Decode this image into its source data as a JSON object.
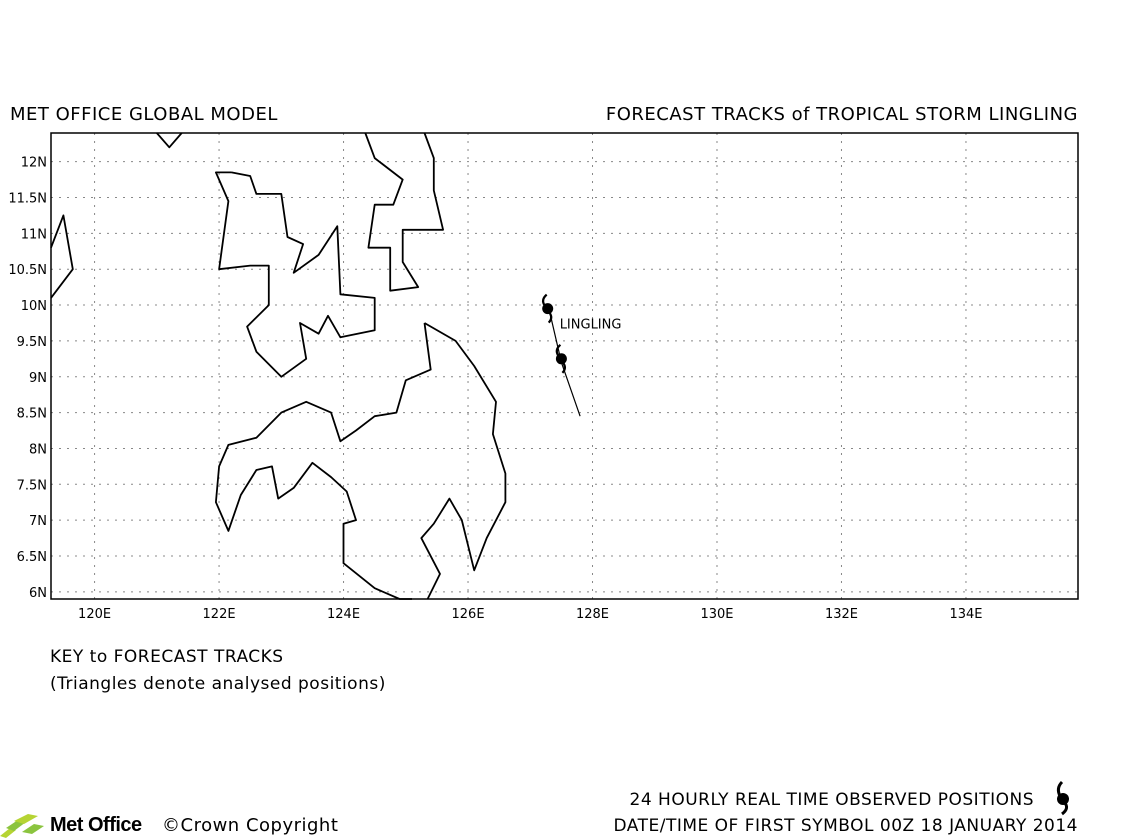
{
  "header": {
    "left_title": "MET OFFICE GLOBAL MODEL",
    "right_title": "FORECAST TRACKS of TROPICAL STORM LINGLING"
  },
  "map": {
    "lon_range": [
      119.3,
      135.8
    ],
    "lat_range": [
      5.9,
      12.4
    ],
    "grid": true,
    "lon_ticks": [
      {
        "value": 120,
        "label": "120E"
      },
      {
        "value": 122,
        "label": "122E"
      },
      {
        "value": 124,
        "label": "124E"
      },
      {
        "value": 126,
        "label": "126E"
      },
      {
        "value": 128,
        "label": "128E"
      },
      {
        "value": 130,
        "label": "130E"
      },
      {
        "value": 132,
        "label": "132E"
      },
      {
        "value": 134,
        "label": "134E"
      }
    ],
    "lat_ticks": [
      {
        "value": 6,
        "label": "6N"
      },
      {
        "value": 6.5,
        "label": "6.5N"
      },
      {
        "value": 7,
        "label": "7N"
      },
      {
        "value": 7.5,
        "label": "7.5N"
      },
      {
        "value": 8,
        "label": "8N"
      },
      {
        "value": 8.5,
        "label": "8.5N"
      },
      {
        "value": 9,
        "label": "9N"
      },
      {
        "value": 9.5,
        "label": "9.5N"
      },
      {
        "value": 10,
        "label": "10N"
      },
      {
        "value": 10.5,
        "label": "10.5N"
      },
      {
        "value": 11,
        "label": "11N"
      },
      {
        "value": 11.5,
        "label": "11.5N"
      },
      {
        "value": 12,
        "label": "12N"
      }
    ],
    "coastlines": [
      [
        [
          119.3,
          10.8
        ],
        [
          119.5,
          11.25
        ],
        [
          119.65,
          10.5
        ],
        [
          119.3,
          10.1
        ]
      ],
      [
        [
          121.0,
          12.4
        ],
        [
          121.2,
          12.2
        ],
        [
          121.4,
          12.4
        ]
      ],
      [
        [
          122.2,
          11.85
        ],
        [
          122.5,
          11.8
        ],
        [
          122.6,
          11.55
        ],
        [
          123.0,
          11.55
        ],
        [
          123.1,
          10.95
        ],
        [
          123.35,
          10.85
        ],
        [
          123.2,
          10.45
        ],
        [
          123.6,
          10.7
        ],
        [
          123.9,
          11.1
        ],
        [
          123.95,
          10.15
        ],
        [
          124.5,
          10.1
        ],
        [
          124.5,
          9.65
        ],
        [
          123.95,
          9.55
        ],
        [
          123.75,
          9.85
        ],
        [
          123.6,
          9.6
        ],
        [
          123.3,
          9.75
        ],
        [
          123.4,
          9.25
        ],
        [
          123.0,
          9.0
        ],
        [
          122.6,
          9.35
        ],
        [
          122.45,
          9.7
        ],
        [
          122.8,
          10.0
        ],
        [
          122.8,
          10.55
        ],
        [
          122.5,
          10.55
        ],
        [
          122.0,
          10.5
        ],
        [
          122.15,
          11.45
        ],
        [
          121.95,
          11.85
        ],
        [
          122.2,
          11.85
        ]
      ],
      [
        [
          124.35,
          12.4
        ],
        [
          124.5,
          12.05
        ],
        [
          124.95,
          11.75
        ],
        [
          124.8,
          11.4
        ],
        [
          124.5,
          11.4
        ],
        [
          124.4,
          10.8
        ],
        [
          124.75,
          10.8
        ],
        [
          124.75,
          10.2
        ],
        [
          125.2,
          10.25
        ],
        [
          124.95,
          10.6
        ],
        [
          124.95,
          11.05
        ],
        [
          125.6,
          11.05
        ],
        [
          125.45,
          11.6
        ],
        [
          125.45,
          12.05
        ],
        [
          125.3,
          12.4
        ]
      ],
      [
        [
          125.3,
          9.75
        ],
        [
          125.8,
          9.5
        ],
        [
          126.1,
          9.15
        ],
        [
          126.45,
          8.65
        ],
        [
          126.4,
          8.2
        ],
        [
          126.6,
          7.65
        ],
        [
          126.6,
          7.25
        ],
        [
          126.3,
          6.75
        ],
        [
          126.1,
          6.3
        ],
        [
          125.9,
          7.0
        ],
        [
          125.7,
          7.3
        ],
        [
          125.45,
          6.95
        ],
        [
          125.25,
          6.75
        ],
        [
          125.55,
          6.25
        ],
        [
          125.35,
          5.9
        ]
      ],
      [
        [
          125.3,
          9.75
        ],
        [
          125.4,
          9.1
        ],
        [
          125.0,
          8.95
        ],
        [
          124.85,
          8.5
        ],
        [
          124.5,
          8.45
        ],
        [
          124.2,
          8.25
        ],
        [
          123.95,
          8.1
        ],
        [
          123.8,
          8.5
        ],
        [
          123.4,
          8.65
        ],
        [
          123.0,
          8.5
        ],
        [
          122.6,
          8.15
        ],
        [
          122.15,
          8.05
        ],
        [
          122.0,
          7.75
        ],
        [
          121.95,
          7.25
        ],
        [
          122.15,
          6.85
        ],
        [
          122.35,
          7.35
        ],
        [
          122.6,
          7.7
        ],
        [
          122.85,
          7.75
        ],
        [
          122.95,
          7.3
        ],
        [
          123.2,
          7.45
        ],
        [
          123.5,
          7.8
        ],
        [
          123.8,
          7.6
        ],
        [
          124.05,
          7.4
        ],
        [
          124.2,
          7.0
        ],
        [
          124.0,
          6.95
        ],
        [
          124.0,
          6.4
        ],
        [
          124.5,
          6.05
        ],
        [
          124.9,
          5.9
        ],
        [
          125.1,
          5.9
        ]
      ]
    ],
    "storm": {
      "name": "LINGLING",
      "track": [
        [
          127.3,
          9.95
        ],
        [
          127.5,
          9.2
        ],
        [
          127.8,
          8.45
        ]
      ],
      "observed_positions": [
        [
          127.28,
          9.95
        ],
        [
          127.5,
          9.25
        ]
      ]
    }
  },
  "key": {
    "title": "KEY to FORECAST TRACKS",
    "note": "(Triangles denote analysed positions)"
  },
  "footer": {
    "observed_label": "24 HOURLY REAL TIME OBSERVED POSITIONS",
    "date_label": "DATE/TIME OF FIRST SYMBOL 00Z 18 JANUARY 2014",
    "logo_name": "Met Office",
    "copyright": "©Crown Copyright"
  }
}
